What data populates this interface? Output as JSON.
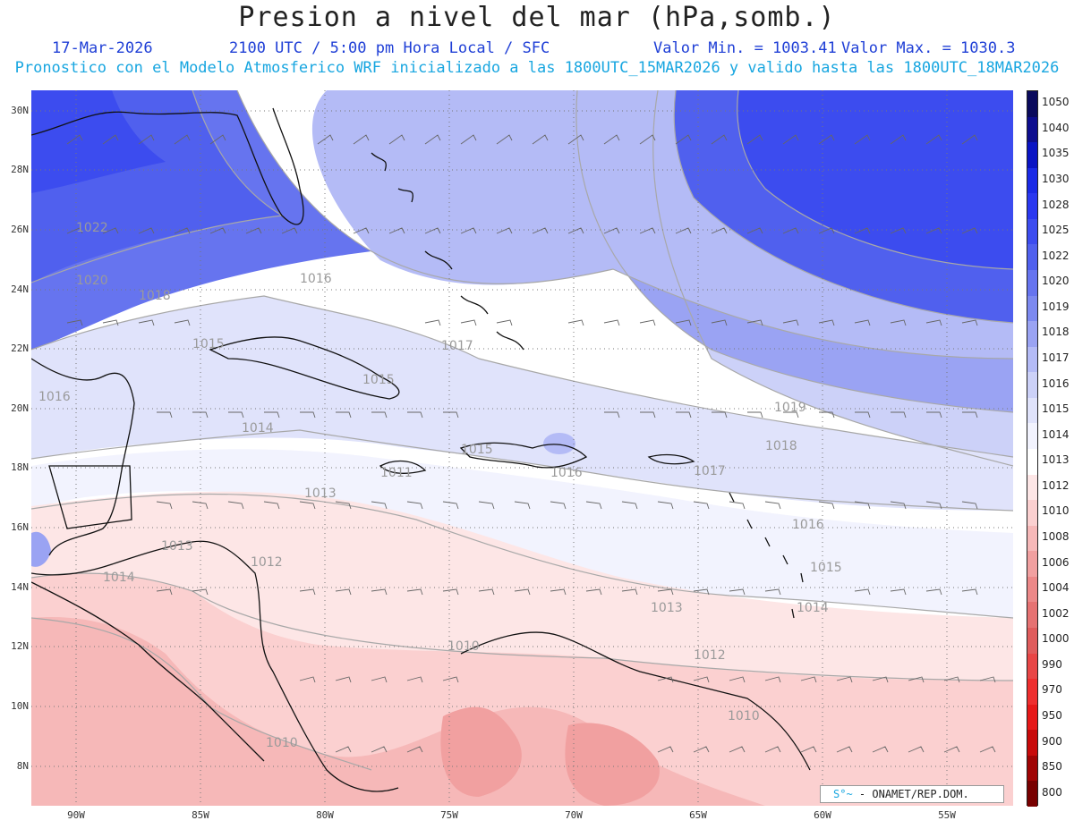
{
  "header": {
    "title": "Presion a nivel del mar (hPa,somb.)",
    "date": "17-Mar-2026",
    "time": "2100 UTC / 5:00 pm Hora Local / SFC",
    "valor_min": "Valor Min. = 1003.41",
    "valor_max": "Valor Max. = 1030.3",
    "model_line": "Pronostico con el Modelo Atmosferico WRF inicializado a las 1800UTC_15MAR2026 y valido hasta las  1800UTC_18MAR2026"
  },
  "axes": {
    "lat_labels": [
      "30N",
      "28N",
      "26N",
      "24N",
      "22N",
      "20N",
      "18N",
      "16N",
      "14N",
      "12N",
      "10N",
      "8N"
    ],
    "lon_labels": [
      "90W",
      "85W",
      "80W",
      "75W",
      "70W",
      "65W",
      "60W",
      "55W"
    ]
  },
  "isobar_labels": [
    {
      "text": "1022",
      "pos": "nw"
    },
    {
      "text": "1020",
      "pos": "nw"
    },
    {
      "text": "1018",
      "pos": "nw"
    },
    {
      "text": "1016",
      "pos": "bahamas"
    },
    {
      "text": "1015",
      "pos": "cuba"
    },
    {
      "text": "1015",
      "pos": "cuba-south"
    },
    {
      "text": "1016",
      "pos": "mexico"
    },
    {
      "text": "1014",
      "pos": "yucatan"
    },
    {
      "text": "1013",
      "pos": "caribbean-west"
    },
    {
      "text": "1013",
      "pos": "honduras"
    },
    {
      "text": "1012",
      "pos": "honduras-east"
    },
    {
      "text": "1014",
      "pos": "guatemala"
    },
    {
      "text": "1011",
      "pos": "jamaica"
    },
    {
      "text": "1015",
      "pos": "haiti"
    },
    {
      "text": "1016",
      "pos": "dr"
    },
    {
      "text": "1017",
      "pos": "pr"
    },
    {
      "text": "1018",
      "pos": "atlantic"
    },
    {
      "text": "1019",
      "pos": "atlantic"
    },
    {
      "text": "1016",
      "pos": "antilles"
    },
    {
      "text": "1015",
      "pos": "antilles"
    },
    {
      "text": "1014",
      "pos": "antilles"
    },
    {
      "text": "1013",
      "pos": "caribbean-east"
    },
    {
      "text": "1012",
      "pos": "venezuela"
    },
    {
      "text": "1010",
      "pos": "colombia"
    },
    {
      "text": "1010",
      "pos": "venezuela-east"
    },
    {
      "text": "1010",
      "pos": "panama"
    },
    {
      "text": "1017",
      "pos": "bahamas-east"
    }
  ],
  "colorbar": {
    "levels": [
      "1050",
      "1040",
      "1035",
      "1030",
      "1028",
      "1025",
      "1022",
      "1020",
      "1019",
      "1018",
      "1017",
      "1016",
      "1015",
      "1014",
      "1013",
      "1012",
      "1010",
      "1008",
      "1006",
      "1004",
      "1002",
      "1000",
      "990",
      "970",
      "950",
      "900",
      "850",
      "800"
    ],
    "colors": [
      "#0a0a5c",
      "#0d0d8e",
      "#0a14c4",
      "#1a2ae6",
      "#2a38f0",
      "#3c4cef",
      "#5060ee",
      "#6674ef",
      "#7c89f0",
      "#9aa3f3",
      "#b4bbf6",
      "#ccd1f8",
      "#e0e3fb",
      "#f2f3fe",
      "#ffffff",
      "#fde6e6",
      "#fbd0d0",
      "#f6b8b8",
      "#f1a0a0",
      "#ec8888",
      "#e67272",
      "#e05c5c",
      "#e84646",
      "#ee2e2e",
      "#e61818",
      "#c80a0a",
      "#a00404",
      "#780000"
    ]
  },
  "credit": {
    "logo": "S°~",
    "text": "ONAMET/REP.DOM."
  }
}
